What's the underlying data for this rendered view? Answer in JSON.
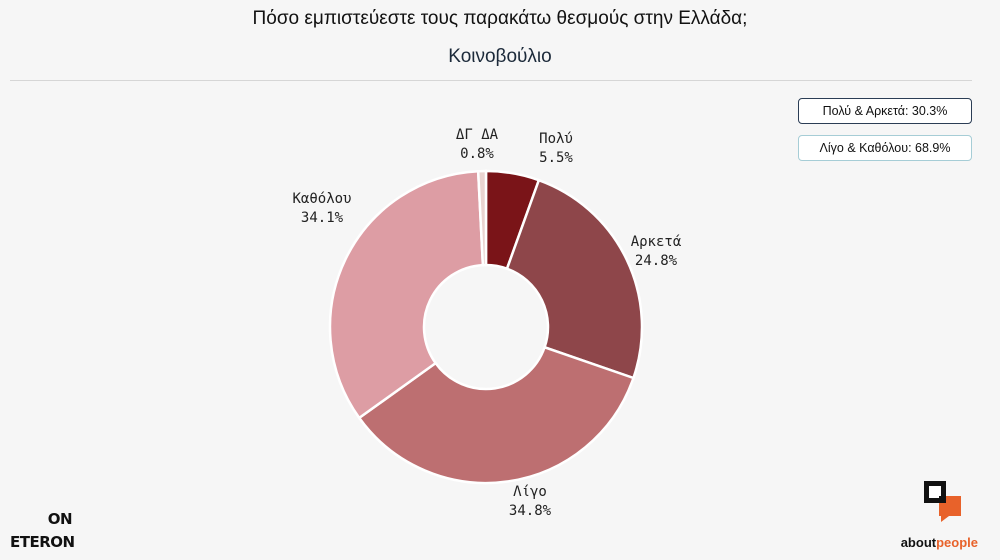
{
  "header": {
    "title": "Πόσο εμπιστεύεστε τους παρακάτω θεσμούς στην Ελλάδα;",
    "subtitle": "Κοινοβούλιο"
  },
  "summary": {
    "positive": "Πολύ & Αρκετά: 30.3%",
    "negative": "Λίγο & Καθόλου: 68.9%"
  },
  "logos": {
    "left_top": "ON",
    "left_bottom": "ETERON",
    "right_word_a": "about",
    "right_word_b": "people",
    "right_icon": "aboutpeople-speech-icon"
  },
  "colors": {
    "poly": "#7a1418",
    "arketa": "#8e464a",
    "ligo": "#bd6f71",
    "katholou": "#dd9da4",
    "dgda": "#ead3d0"
  },
  "chart_data": {
    "type": "pie",
    "variant": "donut",
    "title": "Πόσο εμπιστεύεστε τους παρακάτω θεσμούς στην Ελλάδα;",
    "subtitle": "Κοινοβούλιο",
    "categories": [
      "Πολύ",
      "Αρκετά",
      "Λίγο",
      "Καθόλου",
      "ΔΓ ΔΑ"
    ],
    "values": [
      5.5,
      24.8,
      34.8,
      34.1,
      0.8
    ],
    "value_labels": [
      "5.5%",
      "24.8%",
      "34.8%",
      "34.1%",
      "0.8%"
    ],
    "legend": "none"
  }
}
